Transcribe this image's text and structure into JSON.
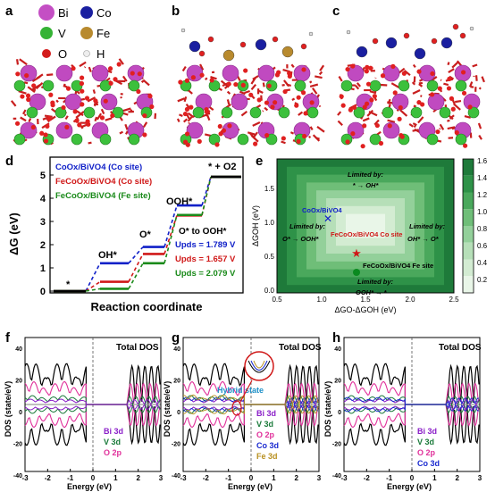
{
  "figure": {
    "labels": {
      "a": "a",
      "b": "b",
      "c": "c",
      "d": "d",
      "e": "e",
      "f": "f",
      "g": "g",
      "h": "h"
    },
    "legend_atoms": [
      {
        "symbol": "Bi",
        "color": "#c44fc4"
      },
      {
        "symbol": "Co",
        "color": "#1a1fa0"
      },
      {
        "symbol": "V",
        "color": "#35b335"
      },
      {
        "symbol": "Fe",
        "color": "#b88a2e"
      },
      {
        "symbol": "O",
        "color": "#d31c1c"
      },
      {
        "symbol": "H",
        "color": "#e8e8e8"
      }
    ]
  },
  "panel_d": {
    "ylabel": "ΔG (eV)",
    "xlabel": "Reaction coordinate",
    "legend": [
      {
        "text": "CoOx/BiVO4 (Co site)",
        "color": "#1020c8"
      },
      {
        "text": "FeCoOx/BiVO4 (Co site)",
        "color": "#d01818"
      },
      {
        "text": "FeCoOx/BiVO4 (Fe site)",
        "color": "#1a8a1a"
      }
    ],
    "species_labels": {
      "star": "*",
      "oh": "OH*",
      "o": "O*",
      "ooh": "OOH*",
      "o2": "* + O2"
    },
    "annotation": "O* to OOH*",
    "upds": [
      {
        "text": "Upds = 1.789 V",
        "color": "#1020c8"
      },
      {
        "text": "Upds = 1.657 V",
        "color": "#d01818"
      },
      {
        "text": "Upds = 2.079 V",
        "color": "#1a8a1a"
      }
    ],
    "yticks": [
      "0",
      "1",
      "2",
      "3",
      "4",
      "5"
    ]
  },
  "panel_e": {
    "xlabel": "ΔGO-ΔGOH (eV)",
    "ylabel": "ΔGOH (eV)",
    "xticks": [
      "0.5",
      "1.0",
      "1.5",
      "2.0",
      "2.5"
    ],
    "yticks": [
      "0.0",
      "0.5",
      "1.0",
      "1.5"
    ],
    "colorbar_ticks": [
      "1.6",
      "1.4",
      "1.2",
      "1.0",
      "0.8",
      "0.6",
      "0.4",
      "0.2"
    ],
    "limited_top": "Limited by:",
    "limited_top_step": "* → OH*",
    "limited_left": "Limited by:",
    "limited_left_step": "O* → OOH*",
    "limited_right": "Limited by:",
    "limited_right_step": "OH* → O*",
    "limited_bottom": "Limited by:",
    "limited_bottom_step": "OOH* → *",
    "point_coox": "CoOx/BiVO4",
    "point_feco_co": "FeCoOx/BiVO4 Co site",
    "point_feco_fe": "FeCoOx/BiVO4 Fe site"
  },
  "dos_common": {
    "ylabel": "DOS (state/eV)",
    "xlabel": "Energy (eV)",
    "xticks": [
      "-3",
      "-2",
      "-1",
      "0",
      "1",
      "2",
      "3"
    ],
    "title": "Total DOS"
  },
  "panel_f": {
    "legend": [
      {
        "text": "Bi 3d",
        "color": "#8a1ec8"
      },
      {
        "text": "V 3d",
        "color": "#1a7a3a"
      },
      {
        "text": "O 2p",
        "color": "#e0309a"
      }
    ]
  },
  "panel_g": {
    "hybrid": "Hybrid state",
    "legend": [
      {
        "text": "Bi 3d",
        "color": "#8a1ec8"
      },
      {
        "text": "V 3d",
        "color": "#1a7a3a"
      },
      {
        "text": "O 2p",
        "color": "#e0309a"
      },
      {
        "text": "Co 3d",
        "color": "#1a2ad0"
      },
      {
        "text": "Fe 3d",
        "color": "#b89020"
      }
    ]
  },
  "panel_h": {
    "legend": [
      {
        "text": "Bi 3d",
        "color": "#8a1ec8"
      },
      {
        "text": "V 3d",
        "color": "#1a7a3a"
      },
      {
        "text": "O 2p",
        "color": "#e0309a"
      },
      {
        "text": "Co 3d",
        "color": "#1a2ad0"
      }
    ]
  }
}
